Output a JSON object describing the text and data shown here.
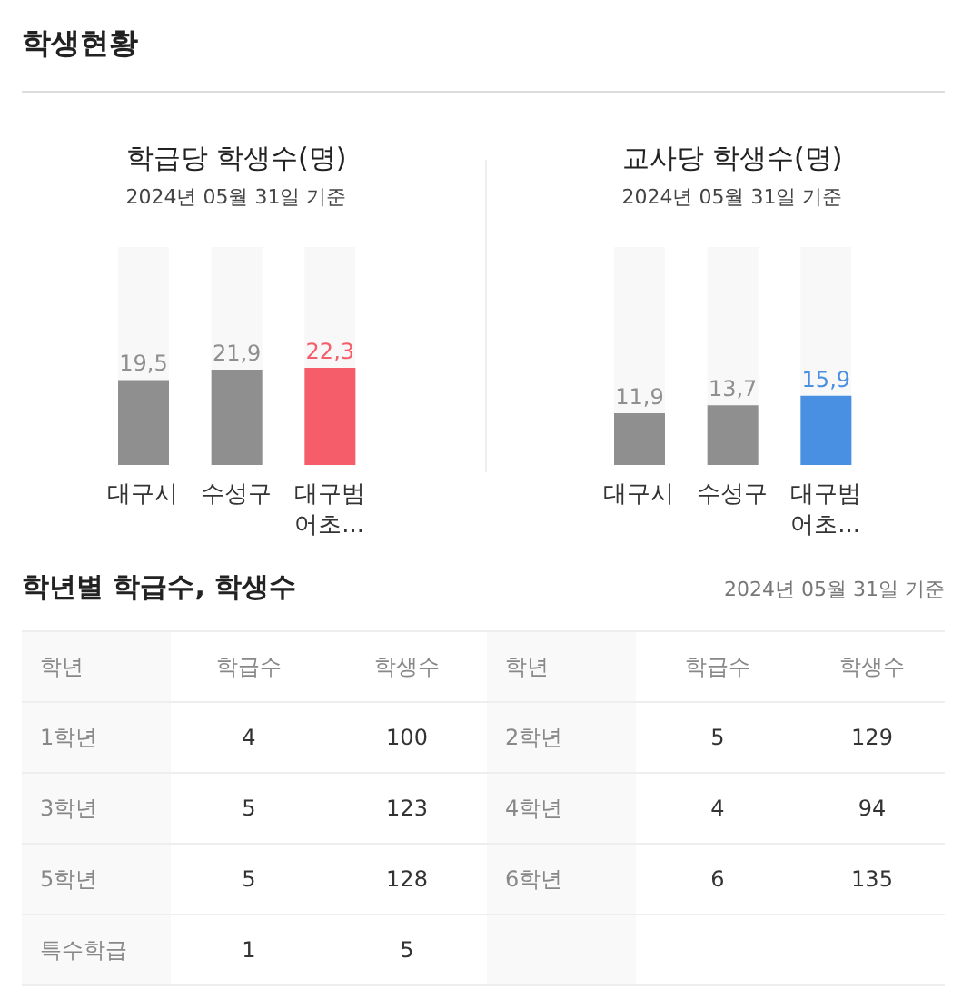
{
  "chart_data": [
    {
      "type": "bar",
      "title": "학급당 학생수(명)",
      "subtitle": "2024년 05월 31일 기준",
      "annotations": [
        "학생현황"
      ],
      "categories": [
        "대구시",
        "수성구",
        "대구범어초..."
      ],
      "values": [
        19.5,
        21.9,
        22.3
      ],
      "colors": [
        "#8f8f8f",
        "#8f8f8f",
        "#f65d6b"
      ],
      "value_labels": [
        "19,5",
        "21,9",
        "22,3"
      ],
      "ylim": [
        0,
        50
      ],
      "tick_labels": "x"
    },
    {
      "type": "bar",
      "title": "교사당 학생수(명)",
      "subtitle": "2024년 05월 31일 기준",
      "categories": [
        "대구시",
        "수성구",
        "대구범어초..."
      ],
      "values": [
        11.9,
        13.7,
        15.9
      ],
      "colors": [
        "#8f8f8f",
        "#8f8f8f",
        "#4a90e2"
      ],
      "value_labels": [
        "11,9",
        "13,7",
        "15,9"
      ],
      "ylim": [
        0,
        50
      ],
      "tick_labels": "x"
    },
    {
      "type": "other",
      "title": "학년별 학급수, 학생수",
      "subtitle": "2024년 05월 31일 기준",
      "categories": [
        "학년",
        "학급수",
        "학생수",
        "학년",
        "학급수",
        "학생수"
      ],
      "cell_labels": [
        [
          "1학년",
          "4",
          "100",
          "2학년",
          "5",
          "129"
        ],
        [
          "3학년",
          "5",
          "123",
          "4학년",
          "4",
          "94"
        ],
        [
          "5학년",
          "5",
          "128",
          "6학년",
          "6",
          "135"
        ],
        [
          "특수학급",
          "1",
          "5",
          null,
          null,
          null
        ]
      ]
    }
  ]
}
